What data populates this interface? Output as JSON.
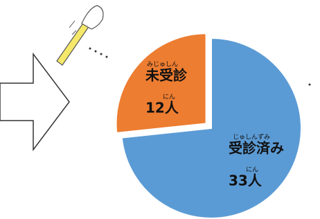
{
  "chart_data": {
    "type": "pie",
    "categories": [
      "受診済み",
      "未受診"
    ],
    "category_ruby": [
      "じゅしんずみ",
      "みじゅしん"
    ],
    "values": [
      33,
      12
    ],
    "value_labels": [
      "33人",
      "12人"
    ],
    "value_label_ruby": [
      "にん",
      "にん"
    ],
    "colors": [
      "#5b9bd5",
      "#ed7d31"
    ]
  }
}
